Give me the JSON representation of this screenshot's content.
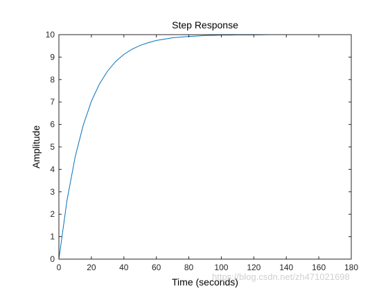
{
  "chart_data": {
    "type": "line",
    "title": "Step Response",
    "xlabel": "Time (seconds)",
    "ylabel": "Amplitude",
    "xlim": [
      0,
      180
    ],
    "ylim": [
      0,
      10
    ],
    "xticks": [
      0,
      20,
      40,
      60,
      80,
      100,
      120,
      140,
      160,
      180
    ],
    "yticks": [
      0,
      1,
      2,
      3,
      4,
      5,
      6,
      7,
      8,
      9,
      10
    ],
    "grid": false,
    "reference_line": {
      "y": 10,
      "style": "dotted",
      "color": "#000000"
    },
    "series": [
      {
        "color": "#0072BD",
        "x": [
          0,
          5,
          10,
          15,
          20,
          25,
          30,
          35,
          40,
          45,
          50,
          55,
          60,
          65,
          70,
          75,
          80,
          85,
          90,
          95,
          100,
          105,
          110,
          115,
          120,
          130,
          140,
          150,
          160,
          170,
          180
        ],
        "y": [
          0,
          2.62,
          4.55,
          5.97,
          7.03,
          7.81,
          8.38,
          8.81,
          9.12,
          9.35,
          9.52,
          9.64,
          9.74,
          9.8,
          9.86,
          9.89,
          9.92,
          9.94,
          9.96,
          9.97,
          9.98,
          9.98,
          9.99,
          9.99,
          9.99,
          10.0,
          10.0,
          10.0,
          10.0,
          10.0,
          10.0
        ]
      }
    ]
  },
  "watermark": "https://blog.csdn.net/zh471021698"
}
